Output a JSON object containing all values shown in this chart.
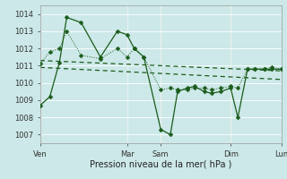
{
  "xlabel": "Pression niveau de la mer( hPa )",
  "ylim": [
    1006.5,
    1014.5
  ],
  "yticks": [
    1007,
    1008,
    1009,
    1010,
    1011,
    1012,
    1013,
    1014
  ],
  "bg_color": "#cce8e8",
  "line_color": "#1a5c1a",
  "day_labels": [
    "Ven",
    "Mar",
    "Sam",
    "Dim",
    "Lun"
  ],
  "day_positions": [
    0.0,
    0.36,
    0.5,
    0.79,
    1.0
  ],
  "xlim": [
    0,
    1
  ],
  "line1_x": [
    0.0,
    0.04,
    0.08,
    0.11,
    0.17,
    0.25,
    0.32,
    0.36,
    0.39,
    0.43,
    0.5,
    0.54,
    0.57,
    0.61,
    0.64,
    0.68,
    0.71,
    0.75,
    0.79,
    0.82,
    0.86,
    0.89,
    0.93,
    0.96,
    1.0
  ],
  "line1_y": [
    1008.7,
    1009.2,
    1011.2,
    1013.8,
    1013.5,
    1011.5,
    1013.0,
    1012.8,
    1012.0,
    1011.5,
    1007.3,
    1007.0,
    1009.5,
    1009.7,
    1009.8,
    1009.5,
    1009.4,
    1009.5,
    1009.7,
    1008.0,
    1010.8,
    1010.8,
    1010.8,
    1010.8,
    1010.8
  ],
  "line2_x": [
    0.0,
    0.04,
    0.08,
    0.11,
    0.17,
    0.25,
    0.32,
    0.36,
    0.39,
    0.43,
    0.5,
    0.54,
    0.57,
    0.61,
    0.64,
    0.68,
    0.71,
    0.75,
    0.79,
    0.82,
    0.86,
    0.89,
    0.93,
    0.96,
    1.0
  ],
  "line2_y": [
    1011.1,
    1011.8,
    1012.0,
    1013.0,
    1011.6,
    1011.4,
    1012.0,
    1011.5,
    1012.0,
    1011.5,
    1009.6,
    1009.7,
    1009.6,
    1009.6,
    1009.7,
    1009.7,
    1009.6,
    1009.7,
    1009.8,
    1009.7,
    1010.8,
    1010.8,
    1010.8,
    1010.9,
    1010.8
  ],
  "trend1_x": [
    0.0,
    1.0
  ],
  "trend1_y": [
    1011.3,
    1010.7
  ],
  "trend2_x": [
    0.0,
    1.0
  ],
  "trend2_y": [
    1010.9,
    1010.2
  ],
  "markersize": 2.5
}
